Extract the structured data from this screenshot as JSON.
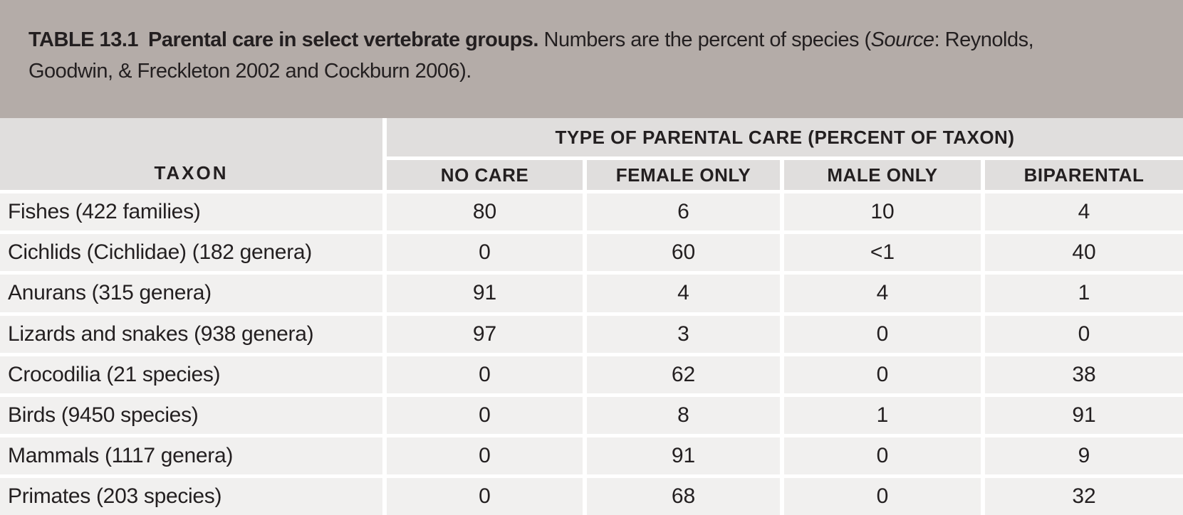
{
  "title": {
    "label": "TABLE 13.1",
    "heading": "Parental care in select vertebrate groups.",
    "caption_prefix": " Numbers are the percent of species (",
    "caption_source_word": "Source",
    "caption_line1_end": ": Reynolds,",
    "caption_line2": "Goodwin, & Freckleton 2002 and Cockburn 2006)."
  },
  "table": {
    "span_header": "TYPE OF PARENTAL CARE (PERCENT OF TAXON)",
    "row_header": "TAXON",
    "columns": [
      "NO CARE",
      "FEMALE ONLY",
      "MALE ONLY",
      "BIPARENTAL"
    ],
    "rows": [
      {
        "taxon": "Fishes (422 families)",
        "values": [
          "80",
          "6",
          "10",
          "4"
        ]
      },
      {
        "taxon": "Cichlids (Cichlidae) (182 genera)",
        "values": [
          "0",
          "60",
          "<1",
          "40"
        ]
      },
      {
        "taxon": "Anurans (315 genera)",
        "values": [
          "91",
          "4",
          "4",
          "1"
        ]
      },
      {
        "taxon": "Lizards and snakes (938 genera)",
        "values": [
          "97",
          "3",
          "0",
          "0"
        ]
      },
      {
        "taxon": "Crocodilia (21 species)",
        "values": [
          "0",
          "62",
          "0",
          "38"
        ]
      },
      {
        "taxon": "Birds (9450 species)",
        "values": [
          "0",
          "8",
          "1",
          "91"
        ]
      },
      {
        "taxon": "Mammals (1117 genera)",
        "values": [
          "0",
          "91",
          "0",
          "9"
        ]
      },
      {
        "taxon": "Primates (203 species)",
        "values": [
          "0",
          "68",
          "0",
          "32"
        ]
      }
    ]
  },
  "colors": {
    "caption_band": "#b4aca8",
    "header_cell": "#e0dedd",
    "data_cell": "#f1f0ef",
    "gutter": "#ffffff",
    "text": "#231f20"
  }
}
